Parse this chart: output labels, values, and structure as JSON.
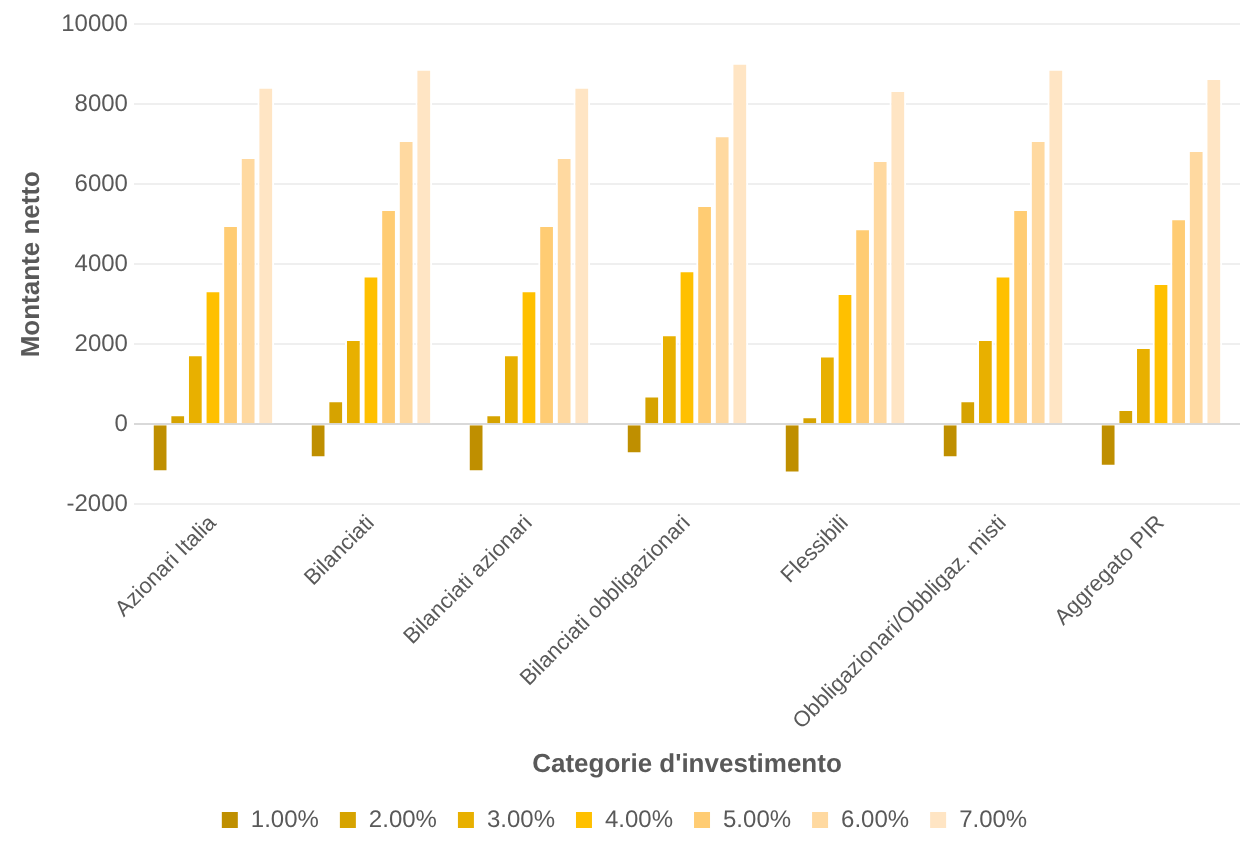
{
  "chart_data": {
    "type": "bar",
    "xlabel": "Categorie d'investimento",
    "ylabel": "Montante netto",
    "categories": [
      "Azionari Italia",
      "Bilanciati",
      "Bilanciati azionari",
      "Bilanciati obbligazionari",
      "Flessibili",
      "Obbligazionari/Obbligaz. misti",
      "Aggregato PIR"
    ],
    "series": [
      {
        "name": "1.00%",
        "color": "#bf8f00",
        "values": [
          -1200,
          -850,
          -1200,
          -750,
          -1230,
          -850,
          -1060
        ]
      },
      {
        "name": "2.00%",
        "color": "#d6a300",
        "values": [
          250,
          600,
          250,
          720,
          200,
          600,
          380
        ]
      },
      {
        "name": "3.00%",
        "color": "#e8b000",
        "values": [
          1750,
          2130,
          1750,
          2250,
          1720,
          2130,
          1930
        ]
      },
      {
        "name": "4.00%",
        "color": "#ffc000",
        "values": [
          3350,
          3720,
          3350,
          3850,
          3280,
          3720,
          3530
        ]
      },
      {
        "name": "5.00%",
        "color": "#ffcc73",
        "values": [
          4980,
          5380,
          4980,
          5480,
          4900,
          5380,
          5150
        ]
      },
      {
        "name": "6.00%",
        "color": "#ffd9a0",
        "values": [
          6680,
          7100,
          6680,
          7220,
          6600,
          7100,
          6850
        ]
      },
      {
        "name": "7.00%",
        "color": "#ffe5c4",
        "values": [
          8430,
          8880,
          8430,
          9030,
          8350,
          8880,
          8650
        ]
      }
    ],
    "ylim": [
      -2000,
      10000
    ],
    "yticks": [
      -2000,
      0,
      2000,
      4000,
      6000,
      8000,
      10000
    ],
    "grid": "y",
    "legend": "bottom"
  }
}
